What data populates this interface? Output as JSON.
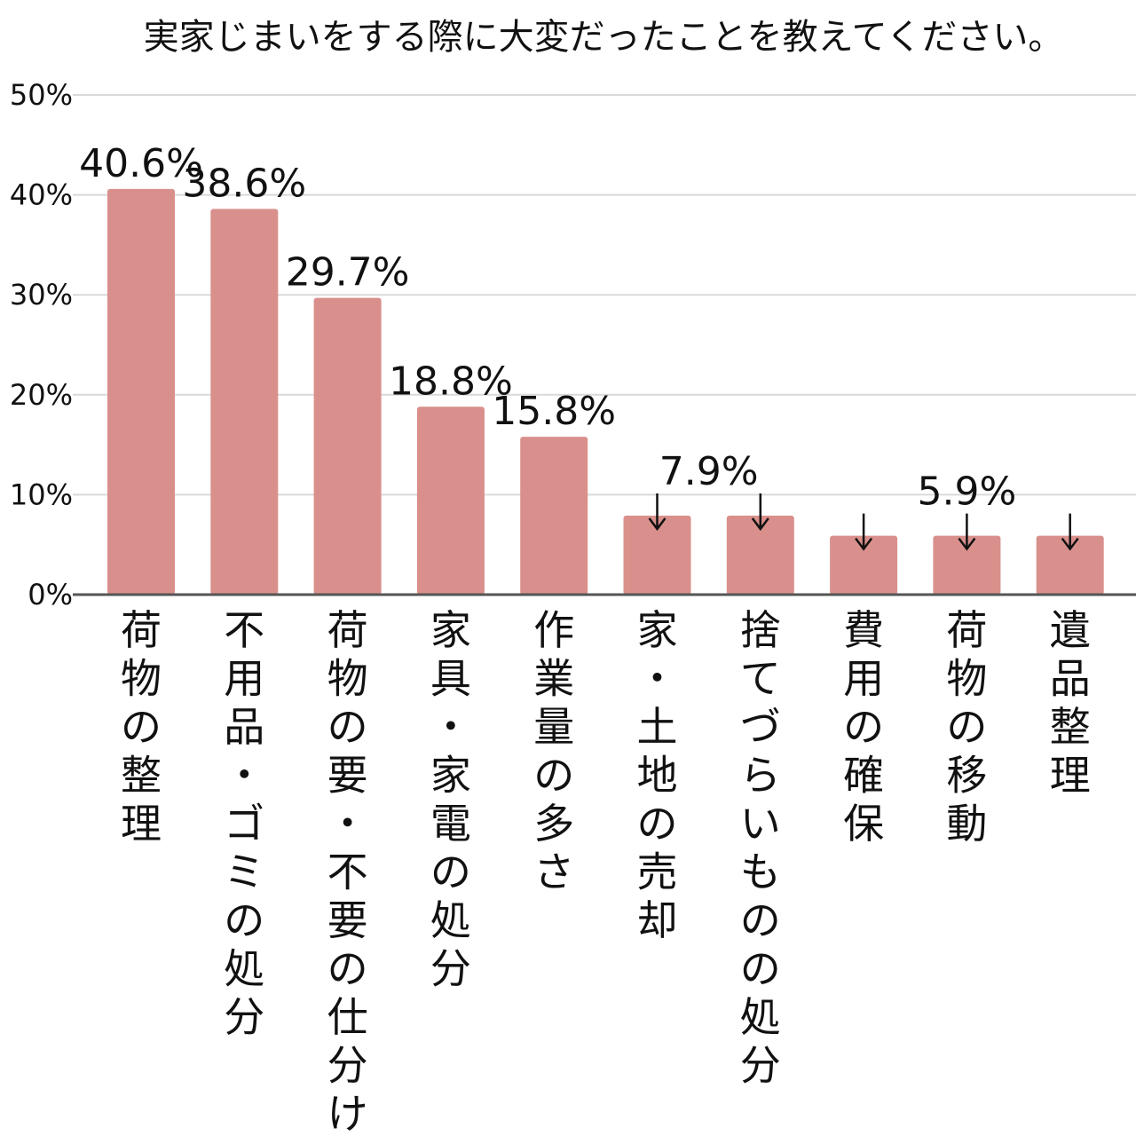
{
  "chart_data": {
    "type": "bar",
    "title": "実家じまいをする際に大変だったことを教えてください。",
    "xlabel": "",
    "ylabel": "",
    "ylim": [
      0,
      50
    ],
    "yticks": [
      "0%",
      "10%",
      "20%",
      "30%",
      "40%",
      "50%"
    ],
    "grid": true,
    "bar_color": "#d9908c",
    "categories": [
      "荷物の整理",
      "不用品・ゴミの処分",
      "荷物の要・不要の仕分け",
      "家具・家電の処分",
      "作業量の多さ",
      "家・土地の売却",
      "捨てづらいものの処分",
      "費用の確保",
      "荷物の移動",
      "遺品整理"
    ],
    "values": [
      40.6,
      38.6,
      29.7,
      18.8,
      15.8,
      7.9,
      7.9,
      5.9,
      5.9,
      5.9
    ],
    "value_labels": [
      {
        "text": "40.6%",
        "bars": [
          0
        ]
      },
      {
        "text": "38.6%",
        "bars": [
          1
        ]
      },
      {
        "text": "29.7%",
        "bars": [
          2
        ]
      },
      {
        "text": "18.8%",
        "bars": [
          3
        ]
      },
      {
        "text": "15.8%",
        "bars": [
          4
        ]
      },
      {
        "text": "7.9%",
        "bars": [
          5,
          6
        ]
      },
      {
        "text": "5.9%",
        "bars": [
          7,
          8,
          9
        ]
      }
    ]
  }
}
